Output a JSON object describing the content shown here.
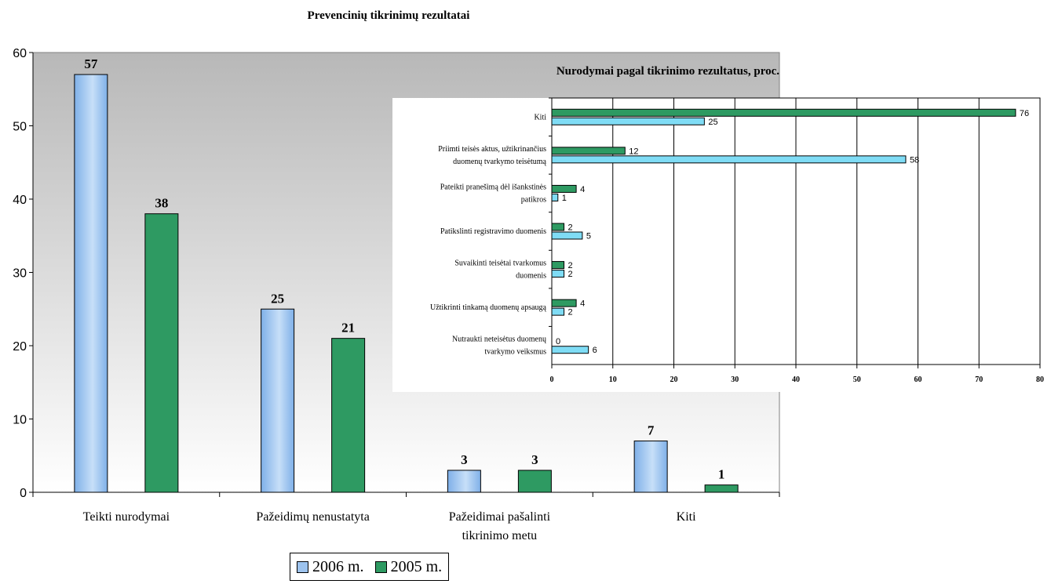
{
  "chart_data": [
    {
      "type": "bar",
      "title": "Prevencinių tikrinimų rezultatai",
      "categories": [
        "Teikti nurodymai",
        "Pažeidimų nenustatyta",
        "Pažeidimai pašalinti tikrinimo metu",
        "Kiti"
      ],
      "category_lines": [
        [
          "Teikti nurodymai"
        ],
        [
          "Pažeidimų nenustatyta"
        ],
        [
          "Pažeidimai pašalinti",
          "tikrinimo metu"
        ],
        [
          "Kiti"
        ]
      ],
      "series": [
        {
          "name": "2006 m.",
          "values": [
            57,
            25,
            3,
            7
          ],
          "color": "#9dc3ee"
        },
        {
          "name": "2005 m.",
          "values": [
            38,
            21,
            3,
            1
          ],
          "color": "#2e9a62"
        }
      ],
      "ylim": [
        0,
        60
      ],
      "yticks": [
        0,
        10,
        20,
        30,
        40,
        50,
        60
      ],
      "legend": "bottom",
      "grid": false
    },
    {
      "type": "bar",
      "orientation": "horizontal",
      "title": "Nurodymai pagal tikrinimo rezultatus, proc.",
      "categories": [
        "Kiti",
        "Priimti teisės aktus, užtikrinančius duomenų tvarkymo teisėtumą",
        "Pateikti pranešimą dėl išankstinės patikros",
        "Patikslinti registravimo duomenis",
        "Suvaikinti teisėtai tvarkomus duomenis",
        "Užtikrinti tinkamą duomenų apsaugą",
        "Nutraukti neteisėtus duomenų tvarkymo veiksmus"
      ],
      "category_lines": [
        [
          "Kiti"
        ],
        [
          "Priimti teisės aktus, užtikrinančius",
          "duomenų tvarkymo teisėtumą"
        ],
        [
          "Pateikti pranešimą dėl išankstinės",
          "patikros"
        ],
        [
          "Patikslinti registravimo duomenis"
        ],
        [
          "Suvaikinti teisėtai tvarkomus",
          "duomenis"
        ],
        [
          "Užtikrinti tinkamą duomenų apsaugą"
        ],
        [
          "Nutraukti neteisėtus duomenų",
          "tvarkymo veiksmus"
        ]
      ],
      "series": [
        {
          "name": "2005 m.",
          "values": [
            76,
            12,
            4,
            2,
            2,
            4,
            0
          ],
          "color": "#2e9a62"
        },
        {
          "name": "2006 m.",
          "values": [
            25,
            58,
            1,
            5,
            2,
            2,
            6
          ],
          "color": "#7fdcf5"
        }
      ],
      "xlim": [
        0,
        80
      ],
      "xticks": [
        0,
        10,
        20,
        30,
        40,
        50,
        60,
        70,
        80
      ],
      "grid": true
    }
  ]
}
